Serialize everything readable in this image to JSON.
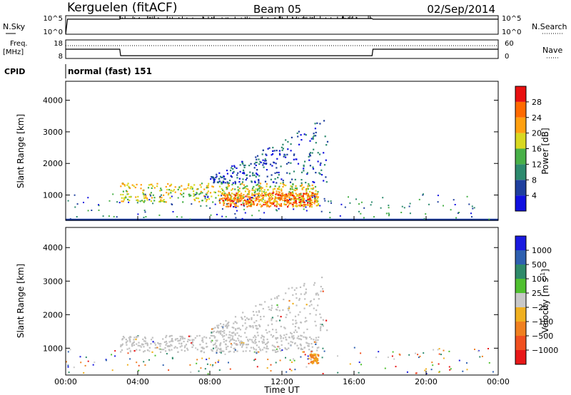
{
  "header": {
    "station": "Kerguelen (fitACF)",
    "beam": "Beam 05",
    "date": "02/Sep/2014"
  },
  "sky_panel": {
    "left_label": "N.Sky",
    "left_ticks": [
      "10^5",
      "10^0"
    ],
    "right_label": "N.Search",
    "right_ticks": [
      "10^5",
      "10^0"
    ]
  },
  "freq_panel": {
    "label_line1": "Freq.",
    "label_line2": "[MHz]",
    "left_ticks": [
      "18",
      "8"
    ],
    "right_label": "Nave",
    "right_ticks": [
      "60",
      "0"
    ]
  },
  "cpid": {
    "label": "CPID",
    "value": "normal (fast) 151"
  },
  "colors": {
    "power_scale": [
      "#1010e0",
      "#1f3f9e",
      "#2d8a6e",
      "#48b048",
      "#d8d820",
      "#ffa010",
      "#ff6a00",
      "#e81010"
    ],
    "velocity_scale": [
      "#1a1ae0",
      "#2e60b0",
      "#2e8a6a",
      "#50c030",
      "#c8c8c8",
      "#f0b020",
      "#f08020",
      "#f05020",
      "#e81818"
    ],
    "ground_scatter": "#c0c0c0",
    "axes": "#000000"
  },
  "chart_data": [
    {
      "type": "heatmap",
      "name": "power",
      "ylabel": "Slant Range [km]",
      "ylim": [
        200,
        4600
      ],
      "yticks": [
        1000,
        2000,
        3000,
        4000
      ],
      "xlim": [
        0,
        24
      ],
      "colorbar": {
        "label": "Power [dB]",
        "range": [
          0,
          32
        ],
        "tick_values": [
          4,
          8,
          12,
          16,
          20,
          24,
          28
        ],
        "tick_labels": [
          "4",
          "8",
          "12",
          "16",
          "20",
          "24",
          "28"
        ]
      },
      "echo_bands": [
        {
          "start_hour": 3.0,
          "end_hour": 14.0,
          "range_low": 800,
          "range_high": 1400,
          "power": 18
        },
        {
          "start_hour": 8.5,
          "end_hour": 14.0,
          "range_low": 650,
          "range_high": 1100,
          "power": 24
        },
        {
          "start_hour": 8.0,
          "end_hour": 14.5,
          "range_low": 1400,
          "range_high": 3300,
          "power": 6
        }
      ]
    },
    {
      "type": "heatmap",
      "name": "velocity",
      "ylabel": "Slant Range [km]",
      "xlabel": "Time UT",
      "ylim": [
        200,
        4600
      ],
      "yticks": [
        1000,
        2000,
        3000,
        4000
      ],
      "xlim": [
        0,
        24
      ],
      "xticks": [
        0,
        4,
        8,
        12,
        16,
        20,
        24
      ],
      "xtick_labels": [
        "00:00",
        "04:00",
        "08:00",
        "12:00",
        "16:00",
        "20:00",
        "00:00"
      ],
      "colorbar": {
        "label": "Velocity [m s^-1]",
        "tick_labels": [
          "1000",
          "500",
          "100",
          "25",
          "−25",
          "−100",
          "−500",
          "−1000"
        ]
      },
      "echo_bands": [
        {
          "start_hour": 3.0,
          "end_hour": 14.0,
          "range_low": 900,
          "range_high": 1400,
          "velocity_class": "ground"
        },
        {
          "start_hour": 13.5,
          "end_hour": 14.0,
          "range_low": 550,
          "range_high": 850,
          "velocity_class": "-100"
        },
        {
          "start_hour": 8.0,
          "end_hour": 14.5,
          "range_low": 1400,
          "range_high": 3200,
          "velocity_class": "ground"
        }
      ]
    },
    {
      "type": "line",
      "name": "sky_noise",
      "x_hours": [
        0,
        0.1,
        3.0,
        3.05,
        17.0,
        17.05,
        24
      ],
      "values_log": [
        0,
        4.8,
        4.8,
        5.0,
        5.0,
        4.8,
        4.8
      ]
    },
    {
      "type": "line",
      "name": "frequency",
      "x_hours": [
        0,
        3.0,
        3.05,
        17.0,
        17.05,
        24
      ],
      "values_mhz": [
        13,
        13,
        9.5,
        9.5,
        13,
        13
      ]
    }
  ]
}
